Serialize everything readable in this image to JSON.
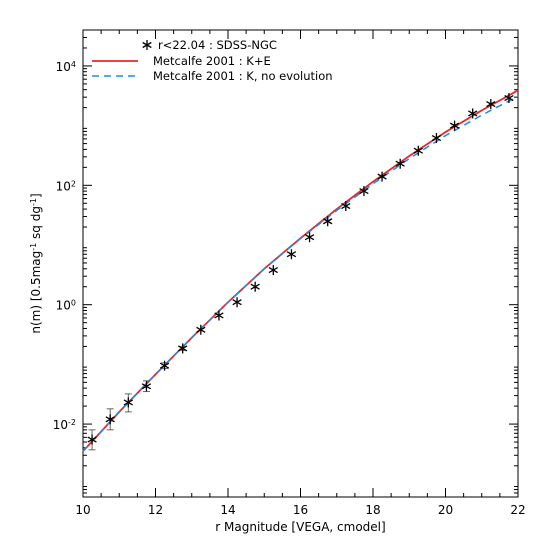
{
  "chart_data": {
    "type": "scatter",
    "title": "",
    "xlabel": "r Magnitude [VEGA, cmodel]",
    "ylabel_parts": {
      "pre": "n(m) [0.5mag",
      "sup1": "-1",
      "mid": " sq dg",
      "sup2": "-1",
      "post": "]"
    },
    "xlim": [
      10,
      22
    ],
    "ylim": [
      0.0006,
      40000
    ],
    "yscale": "log",
    "x_ticks": [
      10,
      12,
      14,
      16,
      18,
      20,
      22
    ],
    "x_tick_labels": [
      "10",
      "12",
      "14",
      "16",
      "18",
      "20",
      "22"
    ],
    "y_ticks": [
      0.01,
      1,
      100,
      10000
    ],
    "y_tick_labels": [
      {
        "base": "10",
        "exp": "-2"
      },
      {
        "base": "10",
        "exp": "0"
      },
      {
        "base": "10",
        "exp": "2"
      },
      {
        "base": "10",
        "exp": "4"
      }
    ],
    "legend_position": "top-left",
    "series": [
      {
        "name": "r<22.04 : SDSS-NGC",
        "kind": "points",
        "marker": "asterisk",
        "color": "#000000",
        "x": [
          10.25,
          10.75,
          11.25,
          11.75,
          12.25,
          12.75,
          13.25,
          13.75,
          14.25,
          14.75,
          15.25,
          15.75,
          16.25,
          16.75,
          17.25,
          17.75,
          18.25,
          18.75,
          19.25,
          19.75,
          20.25,
          20.75,
          21.25,
          21.75
        ],
        "y": [
          0.0055,
          0.012,
          0.023,
          0.043,
          0.095,
          0.185,
          0.38,
          0.66,
          1.1,
          2.0,
          3.8,
          7.0,
          13.5,
          25,
          45,
          80,
          140,
          230,
          380,
          620,
          1000,
          1600,
          2300,
          2900
        ],
        "err_low": [
          0.0037,
          0.008,
          0.016,
          0.035,
          0.085,
          0.172,
          0.36,
          0.63,
          1.05,
          1.94,
          3.7,
          6.85,
          13.2,
          24.5,
          44.3,
          79,
          139,
          228,
          377,
          616,
          995,
          1595,
          2290,
          2890
        ],
        "err_high": [
          0.008,
          0.018,
          0.032,
          0.053,
          0.106,
          0.198,
          0.4,
          0.69,
          1.15,
          2.06,
          3.9,
          7.15,
          13.8,
          25.5,
          45.7,
          81,
          141,
          232,
          383,
          624,
          1005,
          1605,
          2310,
          2910
        ]
      },
      {
        "name": "Metcalfe 2001 : K+E",
        "kind": "line",
        "style": "solid",
        "color": "#e8262b",
        "x": [
          10,
          11,
          12,
          13,
          14,
          15,
          16,
          17,
          18,
          19,
          20,
          21,
          22
        ],
        "y": [
          0.0035,
          0.016,
          0.068,
          0.28,
          1.1,
          4.0,
          13,
          40,
          115,
          310,
          780,
          1800,
          3900
        ]
      },
      {
        "name": "Metcalfe 2001 : K, no evolution",
        "kind": "line",
        "style": "dashed",
        "color": "#1a8fe0",
        "x": [
          10,
          11,
          12,
          13,
          14,
          15,
          16,
          17,
          18,
          19,
          20,
          21,
          22
        ],
        "y": [
          0.0035,
          0.016,
          0.068,
          0.28,
          1.1,
          4.0,
          12.8,
          38,
          106,
          280,
          680,
          1500,
          3100
        ]
      }
    ]
  }
}
